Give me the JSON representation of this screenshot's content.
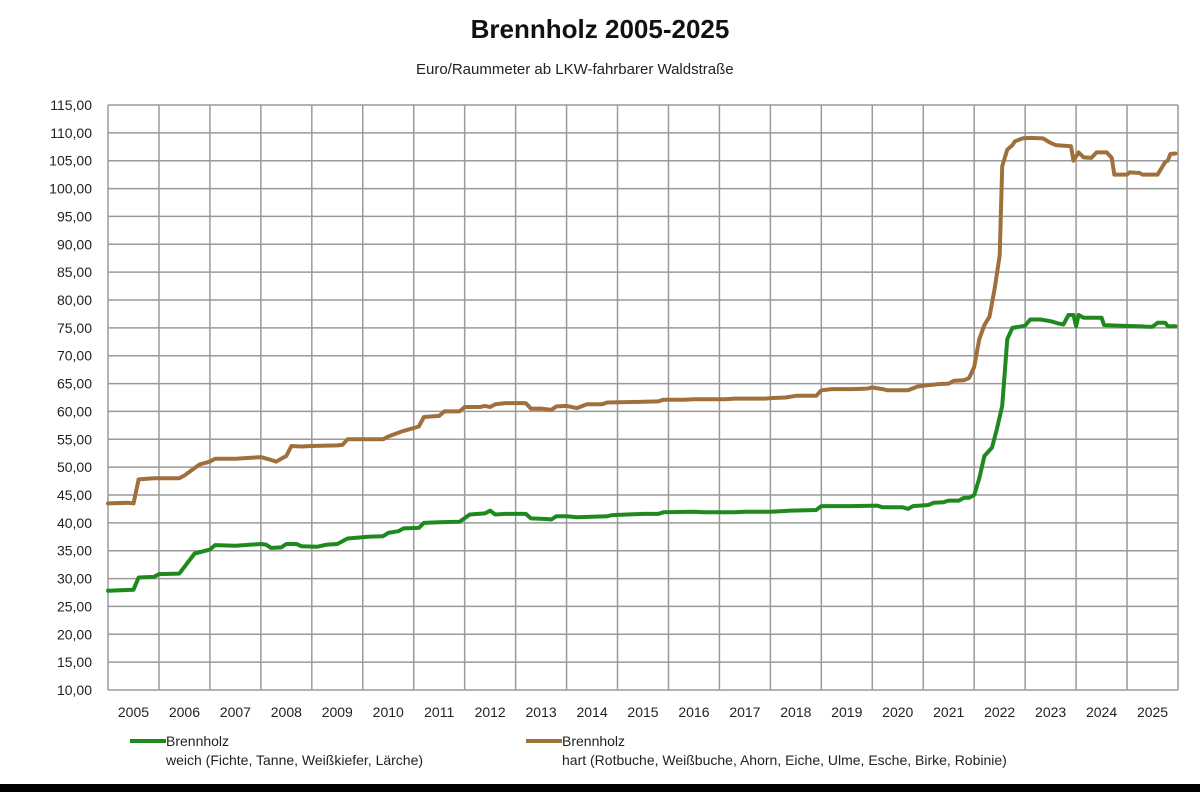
{
  "chart_data": {
    "type": "line",
    "title": "Brennholz 2005-2025",
    "subtitle": "Euro/Raummeter ab LKW-fahrbarer Waldstraße",
    "ylim": [
      10,
      115
    ],
    "ytick_step": 5,
    "y_tick_labels": [
      "115,00",
      "110,00",
      "105,00",
      "100,00",
      "95,00",
      "90,00",
      "85,00",
      "80,00",
      "75,00",
      "70,00",
      "65,00",
      "60,00",
      "55,00",
      "50,00",
      "45,00",
      "40,00",
      "35,00",
      "30,00",
      "25,00",
      "20,00",
      "15,00",
      "10,00"
    ],
    "x_tick_labels": [
      "2005",
      "2006",
      "2007",
      "2008",
      "2009",
      "2010",
      "2011",
      "2012",
      "2013",
      "2014",
      "2015",
      "2016",
      "2017",
      "2018",
      "2019",
      "2020",
      "2021",
      "2022",
      "2023",
      "2024",
      "2025"
    ],
    "grid": true,
    "legend_position": "bottom",
    "series": [
      {
        "name": "Brennholz weich (Fichte, Tanne, Weißkiefer, Lärche)",
        "legend_line1": "Brennholz",
        "legend_line2": "weich (Fichte, Tanne, Weißkiefer, Lärche)",
        "color": "#1e8a1e",
        "points": [
          [
            2004.5,
            27.8
          ],
          [
            2005.0,
            28.0
          ],
          [
            2005.1,
            30.2
          ],
          [
            2005.4,
            30.3
          ],
          [
            2005.5,
            30.8
          ],
          [
            2005.9,
            30.9
          ],
          [
            2006.2,
            34.5
          ],
          [
            2006.5,
            35.2
          ],
          [
            2006.6,
            36.0
          ],
          [
            2007.0,
            35.9
          ],
          [
            2007.5,
            36.2
          ],
          [
            2007.6,
            36.1
          ],
          [
            2007.7,
            35.5
          ],
          [
            2007.9,
            35.6
          ],
          [
            2008.0,
            36.2
          ],
          [
            2008.2,
            36.2
          ],
          [
            2008.3,
            35.8
          ],
          [
            2008.6,
            35.7
          ],
          [
            2008.8,
            36.1
          ],
          [
            2009.0,
            36.2
          ],
          [
            2009.2,
            37.2
          ],
          [
            2009.6,
            37.5
          ],
          [
            2009.9,
            37.6
          ],
          [
            2010.0,
            38.2
          ],
          [
            2010.2,
            38.5
          ],
          [
            2010.3,
            39.0
          ],
          [
            2010.6,
            39.1
          ],
          [
            2010.7,
            40.0
          ],
          [
            2011.0,
            40.1
          ],
          [
            2011.4,
            40.2
          ],
          [
            2011.6,
            41.5
          ],
          [
            2011.9,
            41.7
          ],
          [
            2012.0,
            42.2
          ],
          [
            2012.1,
            41.5
          ],
          [
            2012.3,
            41.6
          ],
          [
            2012.7,
            41.6
          ],
          [
            2012.8,
            40.8
          ],
          [
            2013.1,
            40.7
          ],
          [
            2013.2,
            40.6
          ],
          [
            2013.3,
            41.2
          ],
          [
            2013.5,
            41.2
          ],
          [
            2013.7,
            41.0
          ],
          [
            2014.0,
            41.1
          ],
          [
            2014.3,
            41.2
          ],
          [
            2014.4,
            41.4
          ],
          [
            2015.0,
            41.6
          ],
          [
            2015.3,
            41.6
          ],
          [
            2015.4,
            41.9
          ],
          [
            2016.0,
            42.0
          ],
          [
            2016.2,
            41.9
          ],
          [
            2016.8,
            41.9
          ],
          [
            2017.0,
            42.0
          ],
          [
            2017.5,
            42.0
          ],
          [
            2017.7,
            42.1
          ],
          [
            2017.9,
            42.2
          ],
          [
            2018.4,
            42.3
          ],
          [
            2018.5,
            43.0
          ],
          [
            2019.1,
            43.0
          ],
          [
            2019.6,
            43.1
          ],
          [
            2019.7,
            42.8
          ],
          [
            2020.1,
            42.8
          ],
          [
            2020.2,
            42.5
          ],
          [
            2020.3,
            43.0
          ],
          [
            2020.6,
            43.2
          ],
          [
            2020.7,
            43.6
          ],
          [
            2020.9,
            43.7
          ],
          [
            2021.0,
            44.0
          ],
          [
            2021.2,
            44.0
          ],
          [
            2021.3,
            44.5
          ],
          [
            2021.4,
            44.5
          ],
          [
            2021.5,
            45.0
          ],
          [
            2021.6,
            48.0
          ],
          [
            2021.7,
            52.0
          ],
          [
            2021.8,
            53.0
          ],
          [
            2021.85,
            53.5
          ],
          [
            2021.95,
            57.0
          ],
          [
            2022.05,
            61.0
          ],
          [
            2022.15,
            73.0
          ],
          [
            2022.25,
            75.0
          ],
          [
            2022.4,
            75.2
          ],
          [
            2022.5,
            75.4
          ],
          [
            2022.6,
            76.5
          ],
          [
            2022.8,
            76.5
          ],
          [
            2023.0,
            76.2
          ],
          [
            2023.15,
            75.8
          ],
          [
            2023.25,
            75.6
          ],
          [
            2023.35,
            77.3
          ],
          [
            2023.45,
            77.3
          ],
          [
            2023.5,
            75.3
          ],
          [
            2023.55,
            77.3
          ],
          [
            2023.65,
            76.8
          ],
          [
            2024.0,
            76.8
          ],
          [
            2024.05,
            75.5
          ],
          [
            2024.3,
            75.4
          ],
          [
            2024.7,
            75.3
          ],
          [
            2024.9,
            75.2
          ],
          [
            2025.0,
            75.2
          ],
          [
            2025.1,
            75.9
          ],
          [
            2025.25,
            75.9
          ],
          [
            2025.3,
            75.3
          ],
          [
            2025.45,
            75.3
          ]
        ]
      },
      {
        "name": "Brennholz hart (Rotbuche, Weißbuche, Ahorn, Eiche, Ulme, Esche, Birke, Robinie)",
        "legend_line1": "Brennholz",
        "legend_line2": "hart (Rotbuche, Weißbuche, Ahorn, Eiche, Ulme, Esche, Birke, Robinie)",
        "color": "#a0703c",
        "points": [
          [
            2004.5,
            43.5
          ],
          [
            2004.9,
            43.6
          ],
          [
            2005.0,
            43.5
          ],
          [
            2005.1,
            47.8
          ],
          [
            2005.4,
            48.0
          ],
          [
            2005.9,
            48.0
          ],
          [
            2006.0,
            48.5
          ],
          [
            2006.3,
            50.5
          ],
          [
            2006.5,
            51.0
          ],
          [
            2006.6,
            51.5
          ],
          [
            2007.0,
            51.5
          ],
          [
            2007.5,
            51.8
          ],
          [
            2007.7,
            51.3
          ],
          [
            2007.8,
            51.0
          ],
          [
            2007.9,
            51.5
          ],
          [
            2008.0,
            52.0
          ],
          [
            2008.1,
            53.8
          ],
          [
            2008.3,
            53.7
          ],
          [
            2008.5,
            53.8
          ],
          [
            2009.0,
            53.9
          ],
          [
            2009.1,
            54.0
          ],
          [
            2009.2,
            55.0
          ],
          [
            2009.6,
            55.0
          ],
          [
            2009.9,
            55.0
          ],
          [
            2010.0,
            55.5
          ],
          [
            2010.3,
            56.5
          ],
          [
            2010.5,
            57.0
          ],
          [
            2010.6,
            57.3
          ],
          [
            2010.7,
            59.0
          ],
          [
            2011.0,
            59.2
          ],
          [
            2011.1,
            60.0
          ],
          [
            2011.4,
            60.0
          ],
          [
            2011.5,
            60.8
          ],
          [
            2011.8,
            60.8
          ],
          [
            2011.9,
            61.0
          ],
          [
            2012.0,
            60.8
          ],
          [
            2012.1,
            61.3
          ],
          [
            2012.3,
            61.5
          ],
          [
            2012.7,
            61.5
          ],
          [
            2012.8,
            60.5
          ],
          [
            2013.0,
            60.5
          ],
          [
            2013.2,
            60.3
          ],
          [
            2013.3,
            60.9
          ],
          [
            2013.5,
            61.0
          ],
          [
            2013.7,
            60.6
          ],
          [
            2013.9,
            61.3
          ],
          [
            2014.2,
            61.3
          ],
          [
            2014.3,
            61.6
          ],
          [
            2014.8,
            61.7
          ],
          [
            2015.3,
            61.8
          ],
          [
            2015.4,
            62.1
          ],
          [
            2015.8,
            62.1
          ],
          [
            2016.0,
            62.2
          ],
          [
            2016.6,
            62.2
          ],
          [
            2016.8,
            62.3
          ],
          [
            2017.4,
            62.3
          ],
          [
            2017.5,
            62.4
          ],
          [
            2017.8,
            62.5
          ],
          [
            2018.0,
            62.8
          ],
          [
            2018.4,
            62.8
          ],
          [
            2018.5,
            63.8
          ],
          [
            2018.7,
            64.0
          ],
          [
            2019.1,
            64.0
          ],
          [
            2019.4,
            64.1
          ],
          [
            2019.5,
            64.3
          ],
          [
            2019.7,
            64.0
          ],
          [
            2019.8,
            63.8
          ],
          [
            2020.2,
            63.8
          ],
          [
            2020.4,
            64.5
          ],
          [
            2020.6,
            64.7
          ],
          [
            2020.8,
            64.9
          ],
          [
            2021.0,
            65.0
          ],
          [
            2021.1,
            65.5
          ],
          [
            2021.3,
            65.6
          ],
          [
            2021.4,
            66.0
          ],
          [
            2021.5,
            68.0
          ],
          [
            2021.6,
            73.0
          ],
          [
            2021.7,
            75.5
          ],
          [
            2021.8,
            77.0
          ],
          [
            2021.9,
            82.0
          ],
          [
            2022.0,
            88.0
          ],
          [
            2022.05,
            104.0
          ],
          [
            2022.15,
            107.0
          ],
          [
            2022.25,
            107.8
          ],
          [
            2022.3,
            108.5
          ],
          [
            2022.45,
            109.0
          ],
          [
            2022.6,
            109.1
          ],
          [
            2022.85,
            109.0
          ],
          [
            2023.0,
            108.2
          ],
          [
            2023.1,
            107.8
          ],
          [
            2023.4,
            107.6
          ],
          [
            2023.45,
            105.0
          ],
          [
            2023.55,
            106.5
          ],
          [
            2023.65,
            105.6
          ],
          [
            2023.8,
            105.5
          ],
          [
            2023.9,
            106.5
          ],
          [
            2024.1,
            106.5
          ],
          [
            2024.2,
            105.5
          ],
          [
            2024.25,
            102.5
          ],
          [
            2024.5,
            102.5
          ],
          [
            2024.55,
            102.9
          ],
          [
            2024.75,
            102.8
          ],
          [
            2024.8,
            102.5
          ],
          [
            2025.1,
            102.5
          ],
          [
            2025.25,
            104.8
          ],
          [
            2025.3,
            105.0
          ],
          [
            2025.35,
            106.2
          ],
          [
            2025.45,
            106.3
          ]
        ]
      }
    ]
  }
}
